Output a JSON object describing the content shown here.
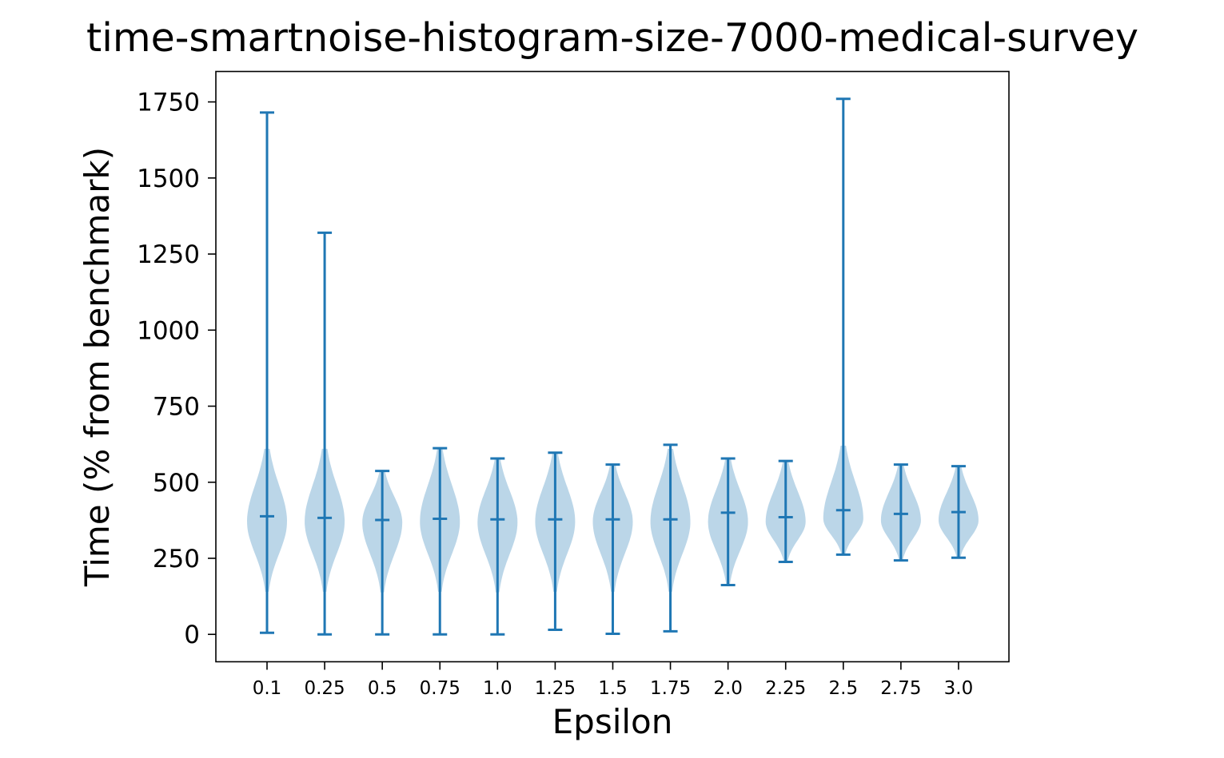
{
  "chart_data": {
    "type": "violin",
    "title": "time-smartnoise-histogram-size-7000-medical-survey",
    "xlabel": "Epsilon",
    "ylabel": "Time (% from benchmark)",
    "ylim": [
      -90,
      1850
    ],
    "yticks": [
      0,
      250,
      500,
      750,
      1000,
      1250,
      1500,
      1750
    ],
    "grid": false,
    "color": "#1f77b4",
    "categories": [
      "0.1",
      "0.25",
      "0.5",
      "0.75",
      "1.0",
      "1.25",
      "1.5",
      "1.75",
      "2.0",
      "2.25",
      "2.5",
      "2.75",
      "3.0"
    ],
    "series": [
      {
        "min": 5,
        "max": 1715,
        "mean": 388,
        "mode": 370
      },
      {
        "min": 0,
        "max": 1320,
        "mean": 383,
        "mode": 370
      },
      {
        "min": 0,
        "max": 537,
        "mean": 376,
        "mode": 368
      },
      {
        "min": 0,
        "max": 612,
        "mean": 380,
        "mode": 370
      },
      {
        "min": 0,
        "max": 578,
        "mean": 378,
        "mode": 368
      },
      {
        "min": 15,
        "max": 597,
        "mean": 378,
        "mode": 370
      },
      {
        "min": 2,
        "max": 558,
        "mean": 378,
        "mode": 370
      },
      {
        "min": 10,
        "max": 623,
        "mean": 378,
        "mode": 370
      },
      {
        "min": 162,
        "max": 578,
        "mean": 400,
        "mode": 370
      },
      {
        "min": 238,
        "max": 570,
        "mean": 385,
        "mode": 370
      },
      {
        "min": 262,
        "max": 1760,
        "mean": 408,
        "mode": 380
      },
      {
        "min": 243,
        "max": 558,
        "mean": 396,
        "mode": 375
      },
      {
        "min": 252,
        "max": 553,
        "mean": 402,
        "mode": 375
      }
    ]
  }
}
